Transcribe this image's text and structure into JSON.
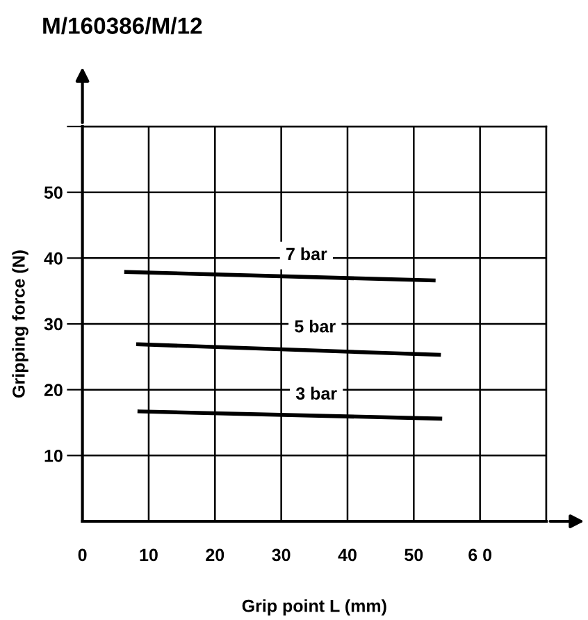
{
  "chart_data": {
    "type": "line",
    "title": "M/160386/M/12",
    "xlabel": "Grip point L (mm)",
    "ylabel": "Gripping force (N)",
    "xlim": [
      0,
      70
    ],
    "ylim": [
      0,
      60
    ],
    "xticks": [
      0,
      10,
      20,
      30,
      40,
      50,
      {
        "value": 60,
        "label": "6 0"
      },
      {
        "value": 70,
        "label": null
      }
    ],
    "yticks": [
      10,
      20,
      30,
      40,
      50,
      {
        "value": 60,
        "label": null
      }
    ],
    "grid": true,
    "legend": false,
    "marker": "none",
    "line_style": "solid",
    "series": [
      {
        "name": "7 bar",
        "color": "#000000",
        "x": [
          6.6,
          53.0
        ],
        "values": [
          37.9,
          36.6
        ]
      },
      {
        "name": "5 bar",
        "color": "#000000",
        "x": [
          8.4,
          53.8
        ],
        "values": [
          26.9,
          25.3
        ]
      },
      {
        "name": "3 bar",
        "color": "#000000",
        "x": [
          8.6,
          54.0
        ],
        "values": [
          16.7,
          15.6
        ]
      }
    ]
  }
}
